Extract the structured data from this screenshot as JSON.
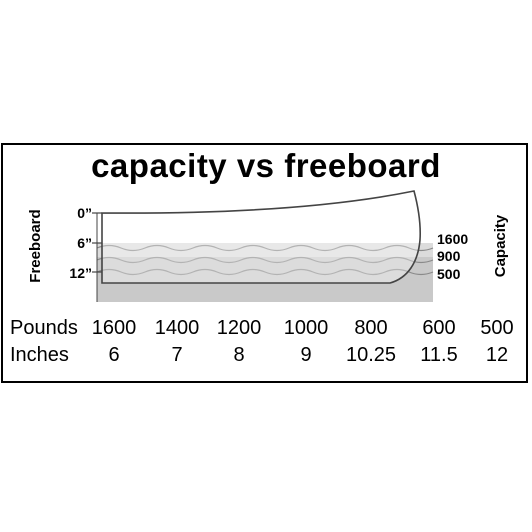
{
  "title": "capacity vs freeboard",
  "axis": {
    "left_label": "Freeboard",
    "right_label": "Capacity"
  },
  "freeboard_ticks": [
    "0”",
    "6”",
    "12”"
  ],
  "capacity_ticks": [
    "1600",
    "900",
    "500"
  ],
  "table": {
    "rows": [
      {
        "label": "Pounds",
        "values": [
          "1600",
          "1400",
          "1200",
          "1000",
          "800",
          "600",
          "500"
        ]
      },
      {
        "label": "Inches",
        "values": [
          "6",
          "7",
          "8",
          "9",
          "10.25",
          "11.5",
          "12"
        ]
      }
    ]
  },
  "colors": {
    "water": "#c8c8c8",
    "water_light": "#dadada",
    "hull_line": "#444444",
    "wave_line": "#888888"
  }
}
